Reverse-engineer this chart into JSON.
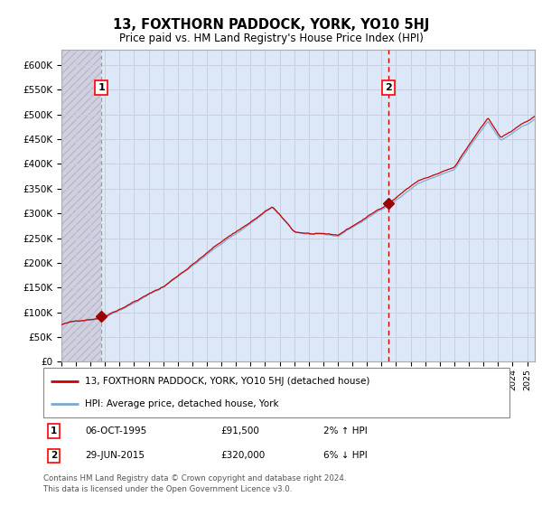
{
  "title": "13, FOXTHORN PADDOCK, YORK, YO10 5HJ",
  "subtitle": "Price paid vs. HM Land Registry's House Price Index (HPI)",
  "purchase1_date": 1995.77,
  "purchase1_price": 91500,
  "purchase2_date": 2015.49,
  "purchase2_price": 320000,
  "legend_line1": "13, FOXTHORN PADDOCK, YORK, YO10 5HJ (detached house)",
  "legend_line2": "HPI: Average price, detached house, York",
  "annotation1_text1": "06-OCT-1995",
  "annotation1_text2": "£91,500",
  "annotation1_text3": "2% ↑ HPI",
  "annotation2_text1": "29-JUN-2015",
  "annotation2_text2": "£320,000",
  "annotation2_text3": "6% ↓ HPI",
  "footer": "Contains HM Land Registry data © Crown copyright and database right 2024.\nThis data is licensed under the Open Government Licence v3.0.",
  "grid_color": "#c8d0e0",
  "bg_color": "#dce8f8",
  "hatch_bg": "#d0d0e0",
  "ylim": [
    0,
    630000
  ],
  "xlim_start": 1993.0,
  "xlim_end": 2025.5,
  "red_line_color": "#cc0000",
  "blue_line_color": "#7aaad0",
  "marker_color": "#990000",
  "vline1_color": "#999999",
  "vline2_color": "#cc0000"
}
